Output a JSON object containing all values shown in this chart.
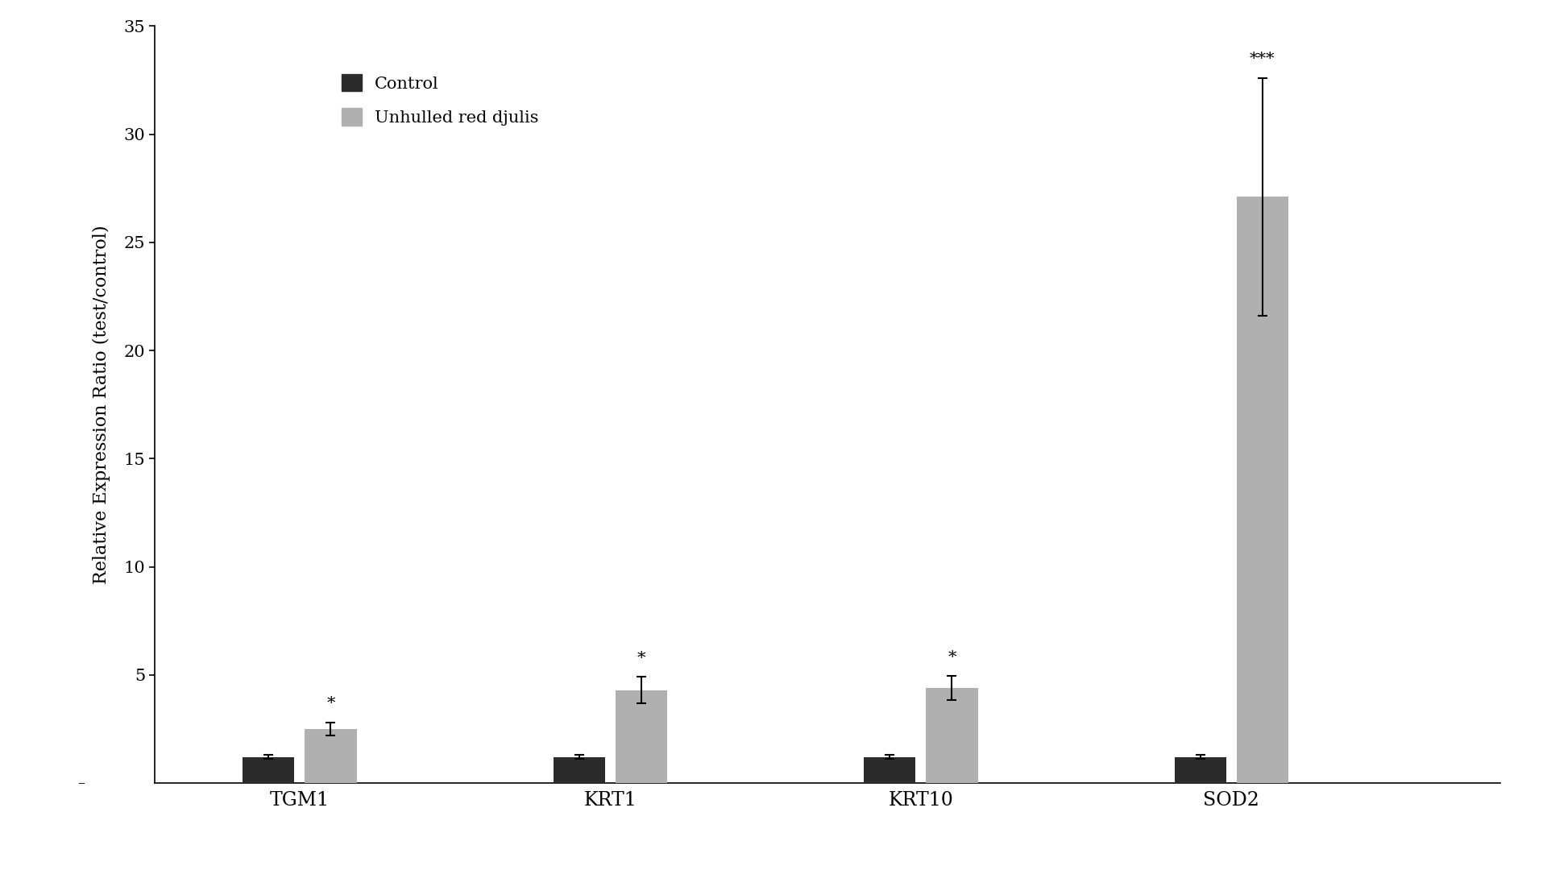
{
  "categories": [
    "TGM1",
    "KRT1",
    "KRT10",
    "SOD2"
  ],
  "control_values": [
    1.2,
    1.2,
    1.2,
    1.2
  ],
  "control_errors": [
    0.1,
    0.1,
    0.1,
    0.1
  ],
  "treatment_values": [
    2.5,
    4.3,
    4.4,
    27.1
  ],
  "treatment_errors": [
    0.3,
    0.6,
    0.55,
    5.5
  ],
  "significance": [
    "*",
    "*",
    "*",
    "***"
  ],
  "control_color": "#2b2b2b",
  "treatment_color": "#b0b0b0",
  "ylabel": "Relative Expression Ratio (test/control)",
  "ylim": [
    0,
    35
  ],
  "yticks": [
    5,
    10,
    15,
    20,
    25,
    30,
    35
  ],
  "legend_labels": [
    "Control",
    "Unhulled red djulis"
  ],
  "bar_width": 0.25,
  "background_color": "#ffffff",
  "label_fontsize": 16,
  "tick_fontsize": 15,
  "legend_fontsize": 15,
  "sig_fontsize": 15
}
